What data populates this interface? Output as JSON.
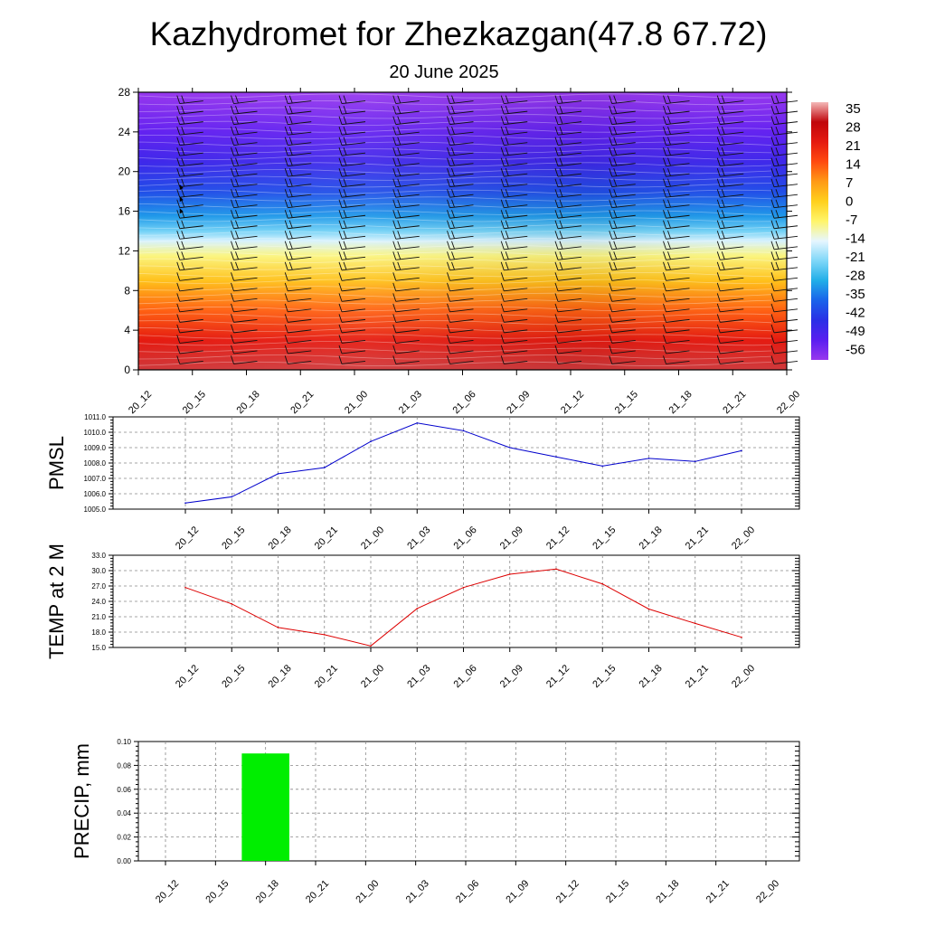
{
  "page": {
    "title": "Kazhydromet for Zhezkazgan(47.8 67.72)",
    "subtitle": "20 June 2025"
  },
  "chart_data": [
    {
      "type": "heatmap",
      "name": "upper-air cross-section",
      "y_ticks": [
        0,
        4,
        8,
        12,
        16,
        20,
        24,
        28
      ],
      "ylim": [
        0,
        28
      ],
      "x_categories": [
        "20_12",
        "20_15",
        "20_18",
        "20_21",
        "21_00",
        "21_03",
        "21_06",
        "21_09",
        "21_12",
        "21_15",
        "21_18",
        "21_21",
        "22_00"
      ],
      "colorbar_labels": [
        "35",
        "28",
        "21",
        "14",
        "7",
        "0",
        "-7",
        "-14",
        "-21",
        "-28",
        "-35",
        "-42",
        "-49",
        "-56"
      ],
      "color_stops": [
        {
          "value": 35,
          "color": "#f4b8b8"
        },
        {
          "value": 28,
          "color": "#c0060b"
        },
        {
          "value": 21,
          "color": "#e51a10"
        },
        {
          "value": 14,
          "color": "#ff4a10"
        },
        {
          "value": 7,
          "color": "#ff9a16"
        },
        {
          "value": 0,
          "color": "#ffd01c"
        },
        {
          "value": -7,
          "color": "#fff56a"
        },
        {
          "value": -14,
          "color": "#e6f6ff"
        },
        {
          "value": -21,
          "color": "#7fd7f8"
        },
        {
          "value": -28,
          "color": "#21aee8"
        },
        {
          "value": -35,
          "color": "#1a63ea"
        },
        {
          "value": -42,
          "color": "#2a2fe6"
        },
        {
          "value": -49,
          "color": "#5a1ef0"
        },
        {
          "value": -56,
          "color": "#9838ee"
        }
      ],
      "vertical_profile": [
        {
          "level": 0,
          "value": 30
        },
        {
          "level": 3,
          "value": 21
        },
        {
          "level": 6,
          "value": 12
        },
        {
          "level": 9,
          "value": 2
        },
        {
          "level": 11.5,
          "value": -8
        },
        {
          "level": 13,
          "value": -15
        },
        {
          "level": 14,
          "value": -22
        },
        {
          "level": 15.5,
          "value": -30
        },
        {
          "level": 18,
          "value": -38
        },
        {
          "level": 21,
          "value": -45
        },
        {
          "level": 24,
          "value": -50
        },
        {
          "level": 28,
          "value": -57
        }
      ]
    },
    {
      "type": "line",
      "name": "pmsl",
      "ylabel": "PMSL",
      "ylim": [
        1005,
        1011
      ],
      "y_ticks": [
        "1005.0",
        "1006.0",
        "1007.0",
        "1008.0",
        "1009.0",
        "1010.0",
        "1011.0"
      ],
      "x": [
        "20_12",
        "20_15",
        "20_18",
        "20_21",
        "21_00",
        "21_03",
        "21_06",
        "21_09",
        "21_12",
        "21_15",
        "21_18",
        "21_21",
        "22_00"
      ],
      "series": [
        {
          "values": [
            1005.4,
            1005.8,
            1007.3,
            1007.7,
            1009.4,
            1010.6,
            1010.1,
            1009.0,
            1008.4,
            1007.8,
            1008.3,
            1008.1,
            1008.8
          ],
          "color": "#0000cc"
        }
      ]
    },
    {
      "type": "line",
      "name": "temperature",
      "ylabel": "TEMP at 2 M",
      "ylim": [
        15,
        33
      ],
      "y_ticks": [
        "15.0",
        "18.0",
        "21.0",
        "24.0",
        "27.0",
        "30.0",
        "33.0"
      ],
      "x": [
        "20_12",
        "20_15",
        "20_18",
        "20_21",
        "21_00",
        "21_03",
        "21_06",
        "21_09",
        "21_12",
        "21_15",
        "21_18",
        "21_21",
        "22_00"
      ],
      "series": [
        {
          "values": [
            26.7,
            23.5,
            18.9,
            17.5,
            15.3,
            22.6,
            26.7,
            29.3,
            30.3,
            27.4,
            22.5,
            19.7,
            17.0
          ],
          "color": "#dd0000"
        }
      ]
    },
    {
      "type": "bar",
      "name": "precipitation",
      "ylabel": "PRECIP, mm",
      "ylim": [
        0,
        0.1
      ],
      "y_ticks": [
        "0.00",
        "0.02",
        "0.04",
        "0.06",
        "0.08",
        "0.10"
      ],
      "categories": [
        "20_12",
        "20_15",
        "20_18",
        "20_21",
        "21_00",
        "21_03",
        "21_06",
        "21_09",
        "21_12",
        "21_15",
        "21_18",
        "21_21",
        "22_00"
      ],
      "values": [
        0,
        0,
        0.09,
        0,
        0,
        0,
        0,
        0,
        0,
        0,
        0,
        0,
        0
      ],
      "color": "#00ee00"
    }
  ]
}
